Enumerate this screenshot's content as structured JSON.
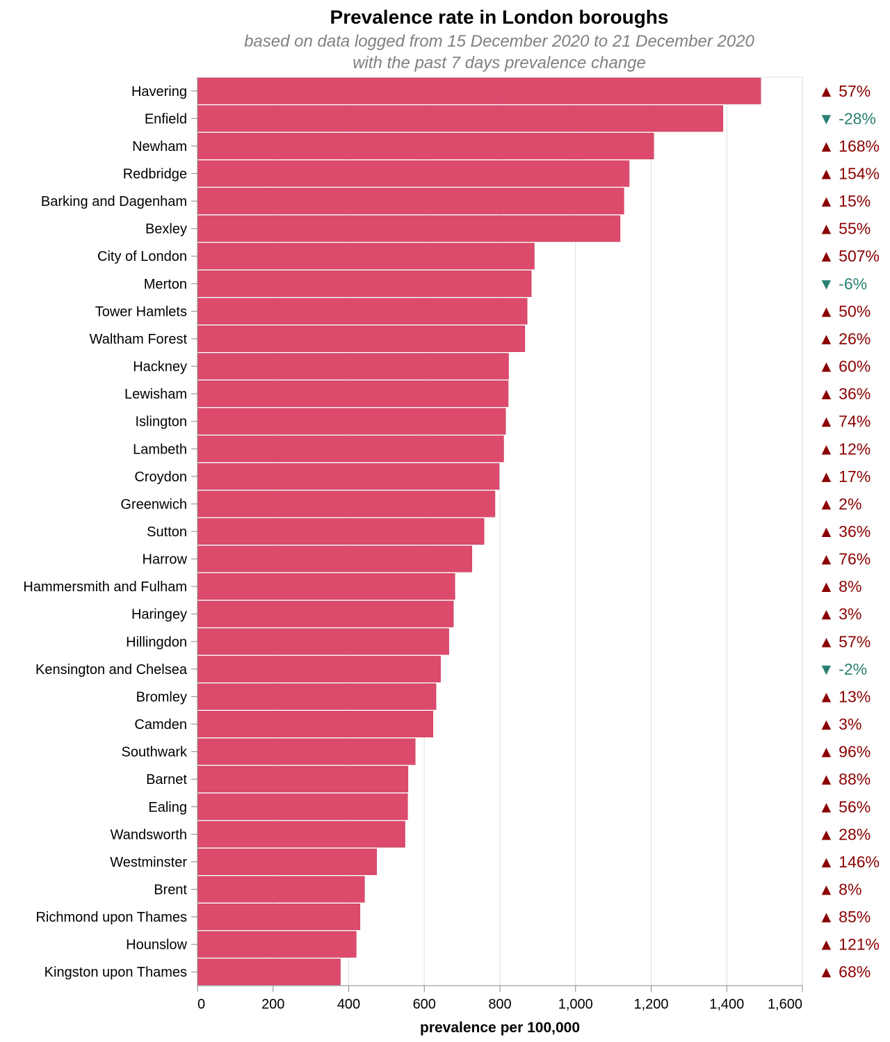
{
  "chart_data": {
    "type": "bar",
    "orientation": "horizontal",
    "title": "Prevalence rate in London boroughs",
    "subtitle": [
      "based on data logged from 15 December 2020 to 21 December 2020",
      "with the past 7 days prevalence change"
    ],
    "xlabel": "prevalence per 100,000",
    "xlim": [
      0,
      1600
    ],
    "x_ticks": [
      0,
      200,
      400,
      600,
      800,
      1000,
      1200,
      1400,
      1600
    ],
    "x_tick_labels": [
      "0",
      "200",
      "400",
      "600",
      "800",
      "1,000",
      "1,200",
      "1,400",
      "1,600"
    ],
    "grid": true,
    "colors": {
      "bar": "#dc4a6c",
      "increase": "#8b0000",
      "decrease": "#2a7f74",
      "grid": "#dddddd",
      "axis": "#888888"
    },
    "categories": [
      "Havering",
      "Enfield",
      "Newham",
      "Redbridge",
      "Barking and Dagenham",
      "Bexley",
      "City of London",
      "Merton",
      "Tower Hamlets",
      "Waltham Forest",
      "Hackney",
      "Lewisham",
      "Islington",
      "Lambeth",
      "Croydon",
      "Greenwich",
      "Sutton",
      "Harrow",
      "Hammersmith and Fulham",
      "Haringey",
      "Hillingdon",
      "Kensington and Chelsea",
      "Bromley",
      "Camden",
      "Southwark",
      "Barnet",
      "Ealing",
      "Wandsworth",
      "Westminster",
      "Brent",
      "Richmond upon Thames",
      "Hounslow",
      "Kingston upon Thames"
    ],
    "values": [
      1490,
      1390,
      1207,
      1142,
      1128,
      1118,
      891,
      883,
      872,
      866,
      823,
      822,
      815,
      810,
      798,
      787,
      758,
      726,
      681,
      677,
      665,
      643,
      631,
      623,
      576,
      557,
      556,
      549,
      474,
      442,
      430,
      420,
      378
    ],
    "change": [
      {
        "dir": "up",
        "label": "▲ 57%"
      },
      {
        "dir": "down",
        "label": "▼ -28%"
      },
      {
        "dir": "up",
        "label": "▲ 168%"
      },
      {
        "dir": "up",
        "label": "▲ 154%"
      },
      {
        "dir": "up",
        "label": "▲ 15%"
      },
      {
        "dir": "up",
        "label": "▲ 55%"
      },
      {
        "dir": "up",
        "label": "▲ 507%"
      },
      {
        "dir": "down",
        "label": "▼ -6%"
      },
      {
        "dir": "up",
        "label": "▲ 50%"
      },
      {
        "dir": "up",
        "label": "▲ 26%"
      },
      {
        "dir": "up",
        "label": "▲ 60%"
      },
      {
        "dir": "up",
        "label": "▲ 36%"
      },
      {
        "dir": "up",
        "label": "▲ 74%"
      },
      {
        "dir": "up",
        "label": "▲ 12%"
      },
      {
        "dir": "up",
        "label": "▲ 17%"
      },
      {
        "dir": "up",
        "label": "▲ 2%"
      },
      {
        "dir": "up",
        "label": "▲ 36%"
      },
      {
        "dir": "up",
        "label": "▲ 76%"
      },
      {
        "dir": "up",
        "label": "▲ 8%"
      },
      {
        "dir": "up",
        "label": "▲ 3%"
      },
      {
        "dir": "up",
        "label": "▲ 57%"
      },
      {
        "dir": "down",
        "label": "▼ -2%"
      },
      {
        "dir": "up",
        "label": "▲ 13%"
      },
      {
        "dir": "up",
        "label": "▲ 3%"
      },
      {
        "dir": "up",
        "label": "▲ 96%"
      },
      {
        "dir": "up",
        "label": "▲ 88%"
      },
      {
        "dir": "up",
        "label": "▲ 56%"
      },
      {
        "dir": "up",
        "label": "▲ 28%"
      },
      {
        "dir": "up",
        "label": "▲ 146%"
      },
      {
        "dir": "up",
        "label": "▲ 8%"
      },
      {
        "dir": "up",
        "label": "▲ 85%"
      },
      {
        "dir": "up",
        "label": "▲ 121%"
      },
      {
        "dir": "up",
        "label": "▲ 68%"
      }
    ]
  }
}
